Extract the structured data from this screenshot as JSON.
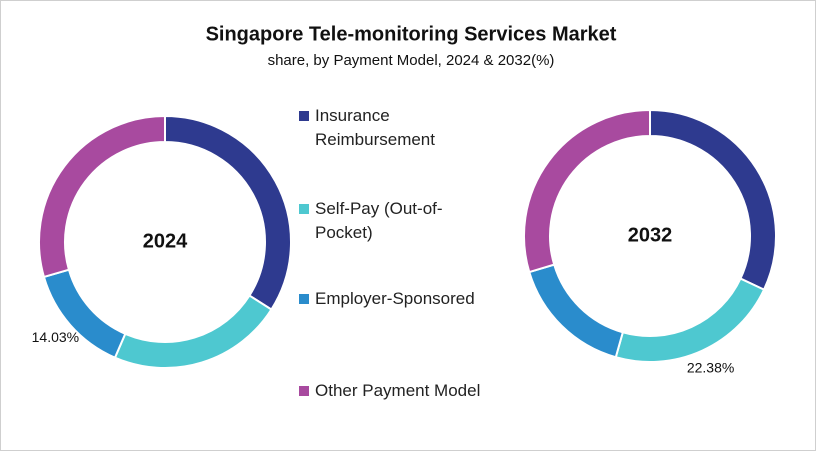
{
  "chart_data": {
    "type": "donut",
    "title": "Singapore Tele-monitoring Services Market",
    "subtitle": "share, by Payment Model, 2024 & 2032(%)",
    "categories": [
      "Insurance Reimbursement",
      "Self-Pay (Out-of-Pocket)",
      "Employer-Sponsored",
      "Other Payment Model"
    ],
    "colors": [
      "#2e3a8f",
      "#4ec8d0",
      "#2a8ccc",
      "#a84a9f"
    ],
    "series": [
      {
        "name": "2024",
        "values": [
          34.0,
          22.5,
          14.03,
          29.47
        ],
        "value_labels": [
          null,
          null,
          "14.03%",
          null
        ]
      },
      {
        "name": "2032",
        "values": [
          32.0,
          22.38,
          16.0,
          29.62
        ],
        "value_labels": [
          null,
          "22.38%",
          null,
          null
        ]
      }
    ]
  }
}
